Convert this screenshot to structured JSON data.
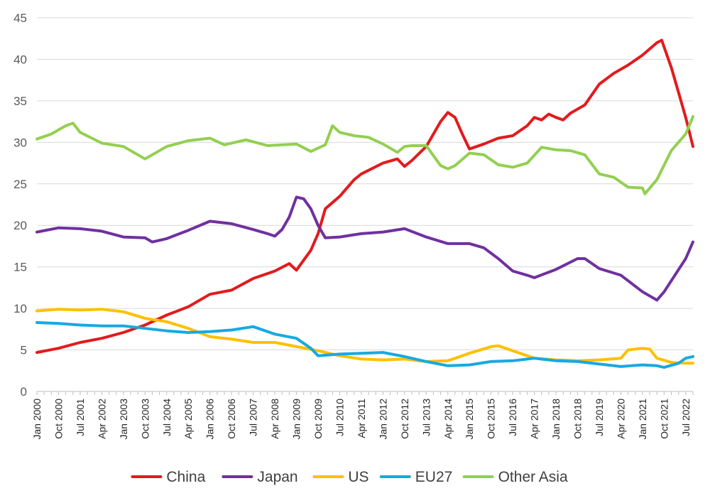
{
  "chart_data": {
    "type": "line",
    "title": "",
    "xlabel": "",
    "ylabel": "",
    "ylim": [
      0,
      45
    ],
    "yticks": [
      0,
      5,
      10,
      15,
      20,
      25,
      30,
      35,
      40,
      45
    ],
    "grid": true,
    "legend_position": "bottom",
    "x_start": "Jan 2000",
    "x_end": "Oct 2022",
    "x_tick_labels": [
      "Jan 2000",
      "Oct 2000",
      "Jul 2001",
      "Apr 2002",
      "Jan 2003",
      "Oct 2003",
      "Jul 2004",
      "Apr 2005",
      "Jan 2006",
      "Oct 2006",
      "Jul 2007",
      "Apr 2008",
      "Jan 2009",
      "Oct 2009",
      "Jul 2010",
      "Apr 2011",
      "Jan 2012",
      "Oct 2012",
      "Jul 2013",
      "Apr 2014",
      "Jan 2015",
      "Oct 2015",
      "Jul 2016",
      "Apr 2017",
      "Jan 2018",
      "Oct 2018",
      "Jul 2019",
      "Apr 2020",
      "Jan 2021",
      "Oct 2021",
      "Jul 2022"
    ],
    "series": [
      {
        "name": "China",
        "color": "#e31a1c",
        "points": [
          [
            "Jan 2000",
            4.7
          ],
          [
            "Oct 2000",
            5.2
          ],
          [
            "Jul 2001",
            5.9
          ],
          [
            "Apr 2002",
            6.4
          ],
          [
            "Jan 2003",
            7.1
          ],
          [
            "Oct 2003",
            8.0
          ],
          [
            "Jul 2004",
            9.2
          ],
          [
            "Apr 2005",
            10.2
          ],
          [
            "Jan 2006",
            11.7
          ],
          [
            "Oct 2006",
            12.2
          ],
          [
            "Jul 2007",
            13.6
          ],
          [
            "Apr 2008",
            14.5
          ],
          [
            "Oct 2008",
            15.4
          ],
          [
            "Jan 2009",
            14.6
          ],
          [
            "Jul 2009",
            17.0
          ],
          [
            "Oct 2009",
            19.0
          ],
          [
            "Jan 2010",
            22.0
          ],
          [
            "Jul 2010",
            23.5
          ],
          [
            "Jan 2011",
            25.5
          ],
          [
            "Apr 2011",
            26.2
          ],
          [
            "Jan 2012",
            27.5
          ],
          [
            "Jul 2012",
            28.0
          ],
          [
            "Oct 2012",
            27.1
          ],
          [
            "Jan 2013",
            27.8
          ],
          [
            "Jul 2013",
            29.5
          ],
          [
            "Jan 2014",
            32.5
          ],
          [
            "Apr 2014",
            33.6
          ],
          [
            "Jul 2014",
            33.0
          ],
          [
            "Oct 2014",
            31.0
          ],
          [
            "Jan 2015",
            29.2
          ],
          [
            "Jul 2015",
            29.8
          ],
          [
            "Jan 2016",
            30.5
          ],
          [
            "Jul 2016",
            30.8
          ],
          [
            "Jan 2017",
            32.0
          ],
          [
            "Apr 2017",
            33.0
          ],
          [
            "Jul 2017",
            32.7
          ],
          [
            "Oct 2017",
            33.4
          ],
          [
            "Jan 2018",
            33.0
          ],
          [
            "Apr 2018",
            32.7
          ],
          [
            "Jul 2018",
            33.5
          ],
          [
            "Jan 2019",
            34.5
          ],
          [
            "Jul 2019",
            37.0
          ],
          [
            "Jan 2020",
            38.3
          ],
          [
            "Jul 2020",
            39.3
          ],
          [
            "Jan 2021",
            40.5
          ],
          [
            "Jul 2021",
            42.0
          ],
          [
            "Sep 2021",
            42.3
          ],
          [
            "Jan 2022",
            39.0
          ],
          [
            "Apr 2022",
            36.0
          ],
          [
            "Jul 2022",
            33.0
          ],
          [
            "Oct 2022",
            29.5
          ]
        ]
      },
      {
        "name": "Japan",
        "color": "#7030a0",
        "points": [
          [
            "Jan 2000",
            19.2
          ],
          [
            "Oct 2000",
            19.7
          ],
          [
            "Jul 2001",
            19.6
          ],
          [
            "Apr 2002",
            19.3
          ],
          [
            "Jan 2003",
            18.6
          ],
          [
            "Oct 2003",
            18.5
          ],
          [
            "Jan 2004",
            18.0
          ],
          [
            "Jul 2004",
            18.4
          ],
          [
            "Apr 2005",
            19.4
          ],
          [
            "Jan 2006",
            20.5
          ],
          [
            "Oct 2006",
            20.2
          ],
          [
            "Jul 2007",
            19.5
          ],
          [
            "Jan 2008",
            19.0
          ],
          [
            "Apr 2008",
            18.7
          ],
          [
            "Jul 2008",
            19.5
          ],
          [
            "Oct 2008",
            21.0
          ],
          [
            "Jan 2009",
            23.4
          ],
          [
            "Apr 2009",
            23.2
          ],
          [
            "Jul 2009",
            22.0
          ],
          [
            "Oct 2009",
            20.0
          ],
          [
            "Jan 2010",
            18.5
          ],
          [
            "Jul 2010",
            18.6
          ],
          [
            "Apr 2011",
            19.0
          ],
          [
            "Jan 2012",
            19.2
          ],
          [
            "Oct 2012",
            19.6
          ],
          [
            "Jul 2013",
            18.6
          ],
          [
            "Apr 2014",
            17.8
          ],
          [
            "Jan 2015",
            17.8
          ],
          [
            "Jul 2015",
            17.3
          ],
          [
            "Jan 2016",
            16.0
          ],
          [
            "Jul 2016",
            14.5
          ],
          [
            "Jan 2017",
            14.0
          ],
          [
            "Apr 2017",
            13.7
          ],
          [
            "Jan 2018",
            14.7
          ],
          [
            "Oct 2018",
            16.0
          ],
          [
            "Jan 2019",
            16.0
          ],
          [
            "Jul 2019",
            14.8
          ],
          [
            "Apr 2020",
            14.0
          ],
          [
            "Jan 2021",
            12.0
          ],
          [
            "Jul 2021",
            11.0
          ],
          [
            "Oct 2021",
            12.0
          ],
          [
            "Jul 2022",
            16.0
          ],
          [
            "Oct 2022",
            18.0
          ]
        ]
      },
      {
        "name": "US",
        "color": "#ffc000",
        "points": [
          [
            "Jan 2000",
            9.7
          ],
          [
            "Oct 2000",
            9.9
          ],
          [
            "Jul 2001",
            9.8
          ],
          [
            "Apr 2002",
            9.9
          ],
          [
            "Jan 2003",
            9.6
          ],
          [
            "Oct 2003",
            8.8
          ],
          [
            "Jul 2004",
            8.4
          ],
          [
            "Apr 2005",
            7.6
          ],
          [
            "Jan 2006",
            6.6
          ],
          [
            "Oct 2006",
            6.3
          ],
          [
            "Jul 2007",
            5.9
          ],
          [
            "Apr 2008",
            5.9
          ],
          [
            "Jan 2009",
            5.4
          ],
          [
            "Oct 2009",
            4.9
          ],
          [
            "Jul 2010",
            4.3
          ],
          [
            "Apr 2011",
            3.9
          ],
          [
            "Jan 2012",
            3.8
          ],
          [
            "Oct 2012",
            3.9
          ],
          [
            "Jul 2013",
            3.6
          ],
          [
            "Apr 2014",
            3.7
          ],
          [
            "Jan 2015",
            4.6
          ],
          [
            "Oct 2015",
            5.4
          ],
          [
            "Jan 2016",
            5.5
          ],
          [
            "Jul 2016",
            4.9
          ],
          [
            "Apr 2017",
            4.0
          ],
          [
            "Jan 2018",
            3.8
          ],
          [
            "Oct 2018",
            3.7
          ],
          [
            "Jul 2019",
            3.8
          ],
          [
            "Apr 2020",
            4.0
          ],
          [
            "Jul 2020",
            5.0
          ],
          [
            "Jan 2021",
            5.2
          ],
          [
            "Apr 2021",
            5.1
          ],
          [
            "Jul 2021",
            4.0
          ],
          [
            "Jan 2022",
            3.5
          ],
          [
            "Jul 2022",
            3.4
          ],
          [
            "Oct 2022",
            3.4
          ]
        ]
      },
      {
        "name": "EU27",
        "color": "#17a9e1",
        "points": [
          [
            "Jan 2000",
            8.3
          ],
          [
            "Oct 2000",
            8.2
          ],
          [
            "Jul 2001",
            8.0
          ],
          [
            "Apr 2002",
            7.9
          ],
          [
            "Jan 2003",
            7.9
          ],
          [
            "Oct 2003",
            7.6
          ],
          [
            "Jul 2004",
            7.3
          ],
          [
            "Apr 2005",
            7.1
          ],
          [
            "Jan 2006",
            7.2
          ],
          [
            "Oct 2006",
            7.4
          ],
          [
            "Jul 2007",
            7.8
          ],
          [
            "Apr 2008",
            6.9
          ],
          [
            "Jan 2009",
            6.4
          ],
          [
            "Jul 2009",
            5.2
          ],
          [
            "Oct 2009",
            4.3
          ],
          [
            "Jul 2010",
            4.5
          ],
          [
            "Apr 2011",
            4.6
          ],
          [
            "Jan 2012",
            4.7
          ],
          [
            "Oct 2012",
            4.2
          ],
          [
            "Jul 2013",
            3.6
          ],
          [
            "Apr 2014",
            3.1
          ],
          [
            "Jan 2015",
            3.2
          ],
          [
            "Oct 2015",
            3.6
          ],
          [
            "Jul 2016",
            3.7
          ],
          [
            "Apr 2017",
            4.0
          ],
          [
            "Jan 2018",
            3.7
          ],
          [
            "Oct 2018",
            3.6
          ],
          [
            "Jul 2019",
            3.3
          ],
          [
            "Apr 2020",
            3.0
          ],
          [
            "Jan 2021",
            3.2
          ],
          [
            "Jul 2021",
            3.1
          ],
          [
            "Oct 2021",
            2.9
          ],
          [
            "Apr 2022",
            3.4
          ],
          [
            "Jul 2022",
            4.0
          ],
          [
            "Oct 2022",
            4.2
          ]
        ]
      },
      {
        "name": "Other Asia",
        "color": "#92d050",
        "points": [
          [
            "Jan 2000",
            30.4
          ],
          [
            "Jul 2000",
            31.0
          ],
          [
            "Jan 2001",
            32.0
          ],
          [
            "Apr 2001",
            32.3
          ],
          [
            "Jul 2001",
            31.2
          ],
          [
            "Apr 2002",
            29.9
          ],
          [
            "Jan 2003",
            29.5
          ],
          [
            "Oct 2003",
            28.0
          ],
          [
            "Jul 2004",
            29.5
          ],
          [
            "Apr 2005",
            30.2
          ],
          [
            "Jan 2006",
            30.5
          ],
          [
            "Jul 2006",
            29.7
          ],
          [
            "Apr 2007",
            30.3
          ],
          [
            "Jan 2008",
            29.6
          ],
          [
            "Jan 2009",
            29.8
          ],
          [
            "Jul 2009",
            28.9
          ],
          [
            "Jan 2010",
            29.7
          ],
          [
            "Apr 2010",
            32.0
          ],
          [
            "Jul 2010",
            31.2
          ],
          [
            "Jan 2011",
            30.8
          ],
          [
            "Jul 2011",
            30.6
          ],
          [
            "Jan 2012",
            29.8
          ],
          [
            "Jul 2012",
            28.8
          ],
          [
            "Oct 2012",
            29.5
          ],
          [
            "Jan 2013",
            29.6
          ],
          [
            "Jul 2013",
            29.6
          ],
          [
            "Jan 2014",
            27.2
          ],
          [
            "Apr 2014",
            26.8
          ],
          [
            "Jul 2014",
            27.2
          ],
          [
            "Jan 2015",
            28.7
          ],
          [
            "Jul 2015",
            28.5
          ],
          [
            "Jan 2016",
            27.3
          ],
          [
            "Jul 2016",
            27.0
          ],
          [
            "Jan 2017",
            27.5
          ],
          [
            "Jul 2017",
            29.4
          ],
          [
            "Jan 2018",
            29.1
          ],
          [
            "Jul 2018",
            29.0
          ],
          [
            "Jan 2019",
            28.5
          ],
          [
            "Jul 2019",
            26.2
          ],
          [
            "Jan 2020",
            25.8
          ],
          [
            "Jul 2020",
            24.6
          ],
          [
            "Jan 2021",
            24.5
          ],
          [
            "Feb 2021",
            23.8
          ],
          [
            "Jul 2021",
            25.5
          ],
          [
            "Jan 2022",
            29.0
          ],
          [
            "Jul 2022",
            31.0
          ],
          [
            "Oct 2022",
            33.1
          ]
        ]
      }
    ]
  }
}
